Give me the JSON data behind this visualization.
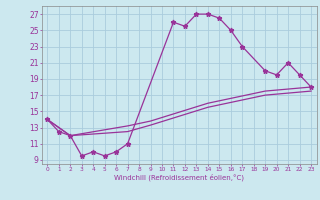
{
  "xlabel": "Windchill (Refroidissement éolien,°C)",
  "bg_color": "#cce8ef",
  "grid_color": "#aaccdd",
  "line_color": "#993399",
  "xlim": [
    -0.5,
    23.5
  ],
  "ylim": [
    8.5,
    28.0
  ],
  "yticks": [
    9,
    11,
    13,
    15,
    17,
    19,
    21,
    23,
    25,
    27
  ],
  "xticks": [
    0,
    1,
    2,
    3,
    4,
    5,
    6,
    7,
    8,
    9,
    10,
    11,
    12,
    13,
    14,
    15,
    16,
    17,
    18,
    19,
    20,
    21,
    22,
    23
  ],
  "series1_x": [
    0,
    1,
    2,
    3,
    4,
    5,
    6,
    7,
    11,
    12,
    13,
    14,
    15,
    16,
    17,
    19,
    20,
    21,
    22,
    23
  ],
  "series1_y": [
    14.0,
    12.5,
    12.0,
    9.5,
    10.0,
    9.5,
    10.0,
    11.0,
    26.0,
    25.5,
    27.0,
    27.0,
    26.5,
    25.0,
    23.0,
    20.0,
    19.5,
    21.0,
    19.5,
    18.0
  ],
  "series2_x": [
    0,
    2,
    7,
    9,
    14,
    19,
    23
  ],
  "series2_y": [
    14.0,
    12.0,
    13.2,
    13.8,
    16.0,
    17.5,
    18.0
  ],
  "series3_x": [
    0,
    2,
    7,
    9,
    14,
    19,
    23
  ],
  "series3_y": [
    14.0,
    12.0,
    12.5,
    13.3,
    15.5,
    17.0,
    17.5
  ]
}
